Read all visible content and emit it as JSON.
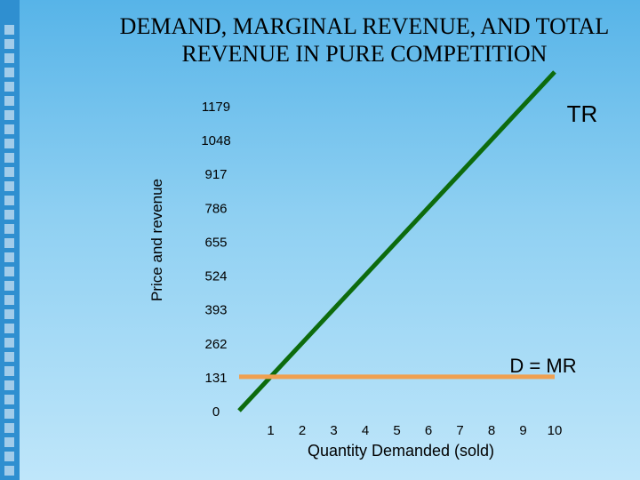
{
  "title_line1": "DEMAND, MARGINAL REVENUE, AND TOTAL",
  "title_line2": "REVENUE IN PURE COMPETITION",
  "chart_data": {
    "type": "line",
    "xlabel": "Quantity Demanded (sold)",
    "ylabel": "Price and revenue",
    "x_ticks": [
      "1",
      "2",
      "3",
      "4",
      "5",
      "6",
      "7",
      "8",
      "9",
      "10"
    ],
    "y_ticks": [
      "0",
      "131",
      "262",
      "393",
      "524",
      "655",
      "786",
      "917",
      "1048",
      "1179"
    ],
    "xlim": [
      0,
      10
    ],
    "ylim": [
      0,
      1179
    ],
    "series": [
      {
        "name": "TR",
        "color": "#0d6b0d",
        "x": [
          0,
          10
        ],
        "y": [
          0,
          1310
        ]
      },
      {
        "name": "D = MR",
        "color": "#f0a050",
        "x": [
          0,
          10
        ],
        "y": [
          131,
          131
        ]
      }
    ],
    "annotations": [
      "TR",
      "D = MR"
    ],
    "grid": false
  }
}
